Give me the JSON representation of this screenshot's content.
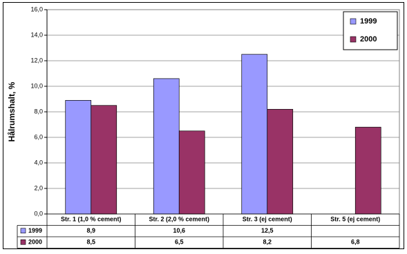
{
  "chart_data": {
    "type": "bar",
    "y_label": "Hålrumshalt, %",
    "categories": [
      "Str. 1 (1,0 % cement)",
      "Str. 2 (2,0 % cement)",
      "Str. 3 (ej cement)",
      "Str. 5 (ej cement)"
    ],
    "series": [
      {
        "name": "1999",
        "color": "#9999ff",
        "values": [
          8.9,
          10.6,
          12.5,
          null
        ],
        "value_labels": [
          "8,9",
          "10,6",
          "12,5",
          null
        ]
      },
      {
        "name": "2000",
        "color": "#993366",
        "values": [
          8.5,
          6.5,
          8.2,
          6.8
        ],
        "value_labels": [
          "8,5",
          "6,5",
          "8,2",
          "6,8"
        ]
      }
    ],
    "ylim": [
      0,
      16
    ],
    "yticks": [
      {
        "value": 0,
        "label": "0,0"
      },
      {
        "value": 2,
        "label": "2,0"
      },
      {
        "value": 4,
        "label": "4,0"
      },
      {
        "value": 6,
        "label": "6,0"
      },
      {
        "value": 8,
        "label": "8,0"
      },
      {
        "value": 10,
        "label": "10,0"
      },
      {
        "value": 12,
        "label": "12,0"
      },
      {
        "value": 14,
        "label": "14,0"
      },
      {
        "value": 16,
        "label": "16,0"
      }
    ],
    "grid": true,
    "legend": "top-right"
  }
}
